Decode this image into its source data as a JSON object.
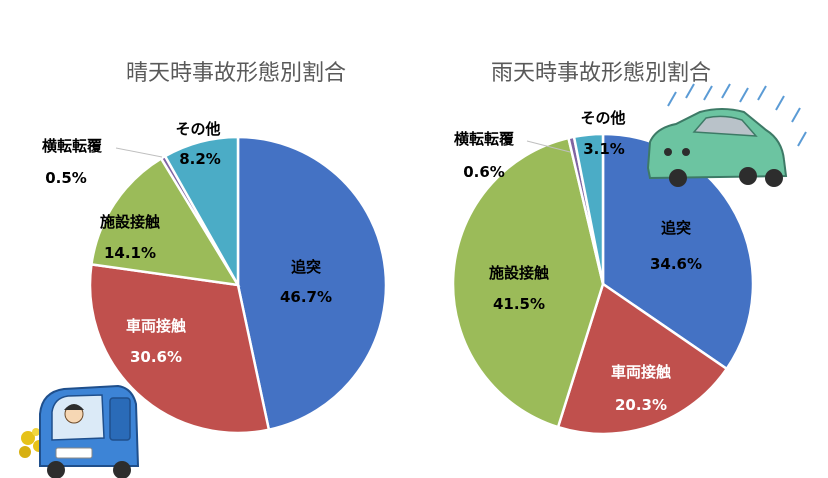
{
  "chart_data": [
    {
      "type": "pie",
      "title": "晴天時事故形態別割合",
      "slices": [
        {
          "label": "追突",
          "value": 46.7,
          "value_text": "46.7%",
          "color": "#4472C4"
        },
        {
          "label": "車両接触",
          "value": 30.6,
          "value_text": "30.6%",
          "color": "#C0504D"
        },
        {
          "label": "施設接触",
          "value": 14.1,
          "value_text": "14.1%",
          "color": "#9BBB59"
        },
        {
          "label": "横転転覆",
          "value": 0.5,
          "value_text": "0.5%",
          "color": "#8064A2"
        },
        {
          "label": "その他",
          "value": 8.2,
          "value_text": "8.2%",
          "color": "#4BACC6"
        }
      ]
    },
    {
      "type": "pie",
      "title": "雨天時事故形態別割合",
      "slices": [
        {
          "label": "追突",
          "value": 34.6,
          "value_text": "34.6%",
          "color": "#4472C4"
        },
        {
          "label": "車両接触",
          "value": 20.3,
          "value_text": "20.3%",
          "color": "#C0504D"
        },
        {
          "label": "施設接触",
          "value": 41.5,
          "value_text": "41.5%",
          "color": "#9BBB59"
        },
        {
          "label": "横転転覆",
          "value": 0.6,
          "value_text": "0.6%",
          "color": "#8064A2"
        },
        {
          "label": "その他",
          "value": 3.1,
          "value_text": "3.1%",
          "color": "#4BACC6"
        }
      ]
    }
  ],
  "illustrations": {
    "sunny_car": "blue-car-with-flowers-icon",
    "rainy_car": "green-car-in-rain-icon"
  }
}
